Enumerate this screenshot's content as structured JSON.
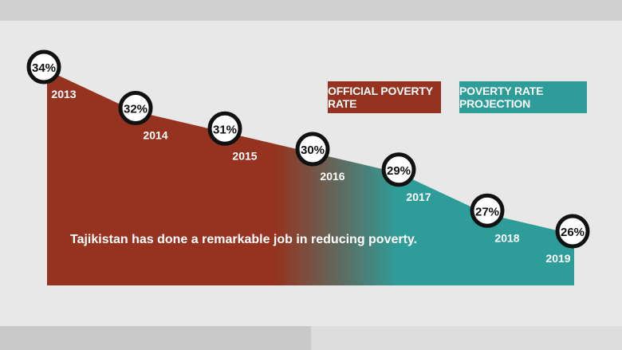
{
  "colors": {
    "official": "#953320",
    "projection": "#2e9d99",
    "marker_ring": "#111111",
    "marker_fill": "#ffffff"
  },
  "legend": {
    "official_label": "OFFICIAL POVERTY RATE",
    "projection_label": "POVERTY RATE PROJECTION"
  },
  "caption": "Tajikistan has done a remarkable job in reducing poverty.",
  "chart_data": {
    "type": "area",
    "title": "",
    "xlabel": "",
    "ylabel": "",
    "x": [
      "2013",
      "2014",
      "2015",
      "2016",
      "2017",
      "2018",
      "2019"
    ],
    "series": [
      {
        "name": "OFFICIAL POVERTY RATE",
        "x": [
          "2013",
          "2014",
          "2015",
          "2016"
        ],
        "values": [
          34,
          32,
          31,
          30
        ]
      },
      {
        "name": "POVERTY RATE PROJECTION",
        "x": [
          "2016",
          "2017",
          "2018",
          "2019"
        ],
        "values": [
          30,
          29,
          27,
          26
        ]
      }
    ],
    "point_labels": [
      "34%",
      "32%",
      "31%",
      "30%",
      "29%",
      "27%",
      "26%"
    ],
    "ylim": [
      0,
      40
    ],
    "grid": false,
    "legend_position": "top-right"
  }
}
